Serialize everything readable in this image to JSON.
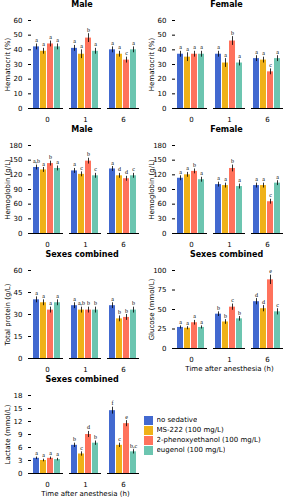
{
  "chart_data": [
    {
      "type": "bar",
      "title": "Male",
      "ylabel": "Hematocrit (%)",
      "categories": [
        "0",
        "1",
        "6"
      ],
      "ylim": [
        0,
        60
      ],
      "yticks": [
        0,
        10,
        20,
        30,
        40,
        50,
        60
      ],
      "series": [
        {
          "name": "no sedative",
          "values": [
            42,
            41,
            40
          ],
          "errors": [
            2,
            2,
            2
          ],
          "letters": [
            "a",
            "a",
            "a"
          ]
        },
        {
          "name": "MS-222 (100 mg/L)",
          "values": [
            39,
            37,
            37
          ],
          "errors": [
            2,
            3,
            2
          ],
          "letters": [
            "a",
            "a",
            "a"
          ]
        },
        {
          "name": "2-phenoxyethanol (100 mg/L)",
          "values": [
            44,
            48,
            33
          ],
          "errors": [
            2,
            3,
            2
          ],
          "letters": [
            "a",
            "b",
            "c"
          ]
        },
        {
          "name": "eugenol (100 mg/L)",
          "values": [
            42,
            39,
            40
          ],
          "errors": [
            2,
            2,
            2
          ],
          "letters": [
            "a",
            "a",
            "a"
          ]
        }
      ]
    },
    {
      "type": "bar",
      "title": "Female",
      "ylabel": "Hematocrit (%)",
      "categories": [
        "0",
        "1",
        "6"
      ],
      "ylim": [
        0,
        60
      ],
      "yticks": [
        0,
        10,
        20,
        30,
        40,
        50,
        60
      ],
      "series": [
        {
          "name": "no sedative",
          "values": [
            37,
            37,
            34
          ],
          "errors": [
            2,
            2,
            2
          ],
          "letters": [
            "a",
            "a",
            "a"
          ]
        },
        {
          "name": "MS-222 (100 mg/L)",
          "values": [
            35,
            31,
            33
          ],
          "errors": [
            3,
            3,
            2
          ],
          "letters": [
            "a",
            "a",
            "a"
          ]
        },
        {
          "name": "2-phenoxyethanol (100 mg/L)",
          "values": [
            37,
            46,
            25
          ],
          "errors": [
            2,
            3,
            2
          ],
          "letters": [
            "a",
            "b",
            "c"
          ]
        },
        {
          "name": "eugenol (100 mg/L)",
          "values": [
            37,
            31,
            34
          ],
          "errors": [
            2,
            2,
            2
          ],
          "letters": [
            "a",
            "a",
            "a"
          ]
        }
      ]
    },
    {
      "type": "bar",
      "title": "Male",
      "ylabel": "Hemoglobin (g/L)",
      "categories": [
        "0",
        "1",
        "6"
      ],
      "ylim": [
        0,
        180
      ],
      "yticks": [
        0,
        30,
        60,
        90,
        120,
        150,
        180
      ],
      "series": [
        {
          "name": "no sedative",
          "values": [
            135,
            128,
            132
          ],
          "errors": [
            5,
            5,
            5
          ],
          "letters": [
            "a,b",
            "a",
            "a"
          ]
        },
        {
          "name": "MS-222 (100 mg/L)",
          "values": [
            130,
            121,
            118
          ],
          "errors": [
            5,
            5,
            5
          ],
          "letters": [
            "a",
            "c",
            "d"
          ]
        },
        {
          "name": "2-phenoxyethanol (100 mg/L)",
          "values": [
            143,
            148,
            112
          ],
          "errors": [
            5,
            6,
            5
          ],
          "letters": [
            "b",
            "b",
            "d"
          ]
        },
        {
          "name": "eugenol (100 mg/L)",
          "values": [
            133,
            118,
            118
          ],
          "errors": [
            5,
            5,
            5
          ],
          "letters": [
            "a",
            "c",
            "c"
          ]
        }
      ]
    },
    {
      "type": "bar",
      "title": "Female",
      "ylabel": "Hemoglobin (g/L)",
      "categories": [
        "0",
        "1",
        "6"
      ],
      "ylim": [
        0,
        180
      ],
      "yticks": [
        0,
        30,
        60,
        90,
        120,
        150,
        180
      ],
      "series": [
        {
          "name": "no sedative",
          "values": [
            113,
            100,
            98
          ],
          "errors": [
            5,
            5,
            5
          ],
          "letters": [
            "a",
            "a",
            "a"
          ]
        },
        {
          "name": "MS-222 (100 mg/L)",
          "values": [
            120,
            98,
            98
          ],
          "errors": [
            5,
            5,
            5
          ],
          "letters": [
            "a",
            "a",
            "a"
          ]
        },
        {
          "name": "2-phenoxyethanol (100 mg/L)",
          "values": [
            127,
            133,
            65
          ],
          "errors": [
            5,
            7,
            5
          ],
          "letters": [
            "b",
            "b",
            "c"
          ]
        },
        {
          "name": "eugenol (100 mg/L)",
          "values": [
            110,
            96,
            103
          ],
          "errors": [
            5,
            5,
            5
          ],
          "letters": [
            "a",
            "a",
            "a"
          ]
        }
      ]
    },
    {
      "type": "bar",
      "title": "Sexes combined",
      "ylabel": "Total protein (g/L)",
      "categories": [
        "0",
        "1",
        "6"
      ],
      "ylim": [
        0,
        60
      ],
      "yticks": [
        0,
        15,
        30,
        45,
        60
      ],
      "series": [
        {
          "name": "no sedative",
          "values": [
            40,
            36,
            36
          ],
          "errors": [
            2,
            2,
            2
          ],
          "letters": [
            "a",
            "a",
            "a"
          ]
        },
        {
          "name": "MS-222 (100 mg/L)",
          "values": [
            38,
            33,
            27
          ],
          "errors": [
            2,
            2,
            2
          ],
          "letters": [
            "a",
            "a,b",
            "b"
          ]
        },
        {
          "name": "2-phenoxyethanol (100 mg/L)",
          "values": [
            33,
            33,
            28
          ],
          "errors": [
            2,
            2,
            2
          ],
          "letters": [
            "a",
            "b",
            "b"
          ]
        },
        {
          "name": "eugenol (100 mg/L)",
          "values": [
            38,
            33,
            33
          ],
          "errors": [
            2,
            2,
            2
          ],
          "letters": [
            "a",
            "b",
            "b"
          ]
        }
      ]
    },
    {
      "type": "bar",
      "title": "Sexes combined",
      "ylabel": "Glucose (mmol/L)",
      "xlabel": "Time after anesthesia (h)",
      "categories": [
        "0",
        "1",
        "6"
      ],
      "ylim": [
        0,
        100
      ],
      "yticks": [
        0,
        25,
        50,
        75,
        100
      ],
      "series": [
        {
          "name": "no sedative",
          "values": [
            27,
            44,
            60
          ],
          "errors": [
            2,
            3,
            4
          ],
          "letters": [
            "a",
            "b",
            "d"
          ]
        },
        {
          "name": "MS-222 (100 mg/L)",
          "values": [
            26,
            34,
            51
          ],
          "errors": [
            2,
            3,
            4
          ],
          "letters": [
            "a",
            "b",
            "d"
          ]
        },
        {
          "name": "2-phenoxyethanol (100 mg/L)",
          "values": [
            33,
            53,
            88
          ],
          "errors": [
            3,
            4,
            6
          ],
          "letters": [
            "a",
            "c",
            "e"
          ]
        },
        {
          "name": "eugenol (100 mg/L)",
          "values": [
            27,
            38,
            47
          ],
          "errors": [
            2,
            3,
            4
          ],
          "letters": [
            "a",
            "b",
            "c"
          ]
        }
      ]
    },
    {
      "type": "bar",
      "title": "Sexes combined",
      "ylabel": "Lactate (mmol/L)",
      "xlabel": "Time after anesthesia (h)",
      "categories": [
        "0",
        "1",
        "6"
      ],
      "ylim": [
        0,
        18
      ],
      "yticks": [
        0,
        3,
        6,
        9,
        12,
        15,
        18
      ],
      "series": [
        {
          "name": "no sedative",
          "values": [
            3.5,
            6.5,
            14.5
          ],
          "errors": [
            0.3,
            0.5,
            0.8
          ],
          "letters": [
            "a",
            "b",
            "f"
          ]
        },
        {
          "name": "MS-222 (100 mg/L)",
          "values": [
            3.0,
            4.5,
            6.5
          ],
          "errors": [
            0.3,
            0.5,
            0.5
          ],
          "letters": [
            "a",
            "c",
            "c"
          ]
        },
        {
          "name": "2-phenoxyethanol (100 mg/L)",
          "values": [
            3.5,
            9.0,
            11.5
          ],
          "errors": [
            0.3,
            0.7,
            0.7
          ],
          "letters": [
            "a",
            "d",
            "e"
          ]
        },
        {
          "name": "eugenol (100 mg/L)",
          "values": [
            3.2,
            7.0,
            5.0
          ],
          "errors": [
            0.3,
            0.5,
            0.5
          ],
          "letters": [
            "a",
            "b",
            "b,c"
          ]
        }
      ]
    }
  ]
}
